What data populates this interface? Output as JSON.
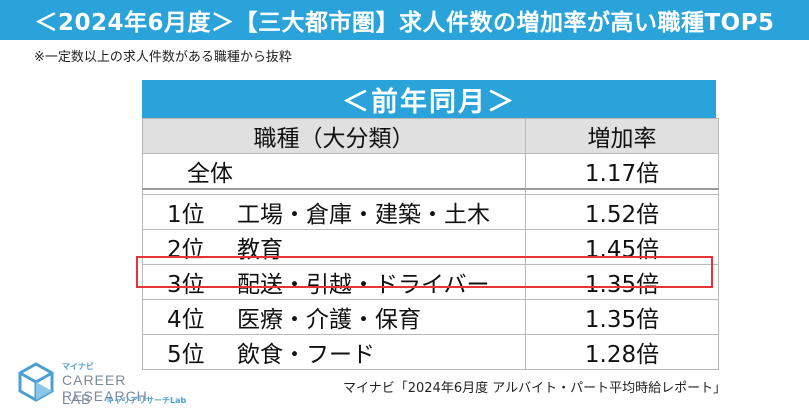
{
  "header": {
    "title": "＜2024年6月度＞【三大都市圏】求人件数の増加率が高い職種TOP5"
  },
  "note": "※一定数以上の求人件数がある職種から抜粋",
  "table": {
    "period_label": "＜前年同月＞",
    "columns": [
      "職種（大分類）",
      "増加率"
    ],
    "overall": {
      "label": "全体",
      "rate": "1.17倍"
    },
    "rows": [
      {
        "rank": "1位",
        "job": "工場・倉庫・建築・土木",
        "rate": "1.52倍",
        "highlighted": false
      },
      {
        "rank": "2位",
        "job": "教育",
        "rate": "1.45倍",
        "highlighted": false
      },
      {
        "rank": "3位",
        "job": "配送・引越・ドライバー",
        "rate": "1.35倍",
        "highlighted": true
      },
      {
        "rank": "4位",
        "job": "医療・介護・保育",
        "rate": "1.35倍",
        "highlighted": false
      },
      {
        "rank": "5位",
        "job": "飲食・フード",
        "rate": "1.28倍",
        "highlighted": false
      }
    ]
  },
  "logo": {
    "top": "マイナビ",
    "main": "CAREER RESEARCH",
    "lab": "LAB",
    "sub": "キャリアリサーチLab"
  },
  "source": "マイナビ「2024年6月度 アルバイト・パート平均時給レポート」",
  "colors": {
    "accent": "#29a3d9",
    "highlight": "#e53434",
    "header_row": "#e0e0e0"
  }
}
